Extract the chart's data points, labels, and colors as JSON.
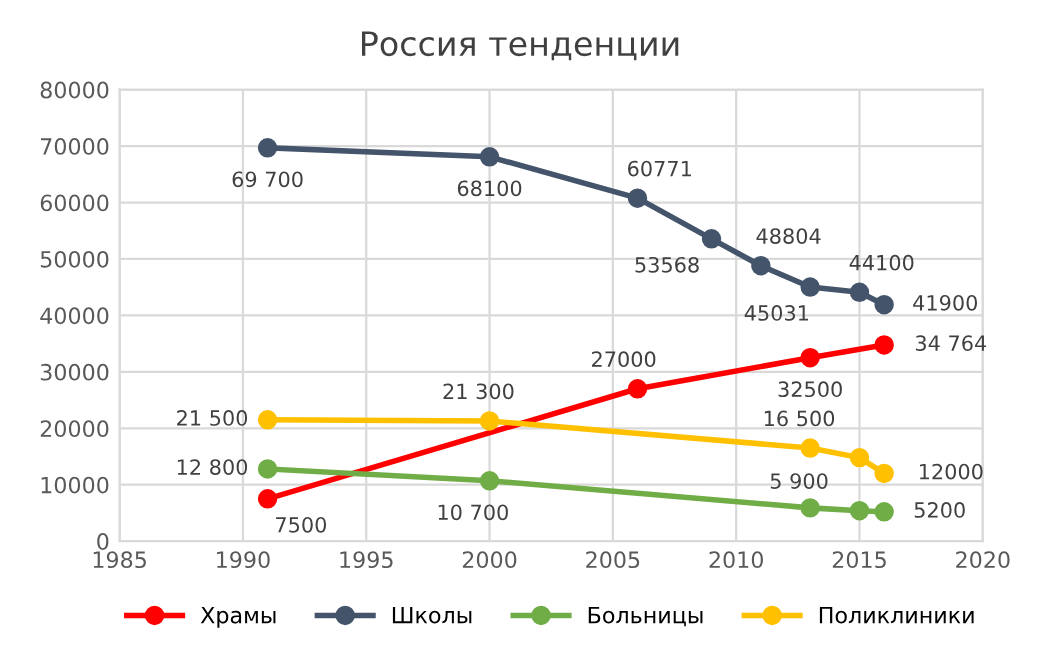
{
  "chart_data": {
    "type": "line",
    "title": "Россия тенденции",
    "xlim": [
      1985,
      2020
    ],
    "xticks": [
      1985,
      1990,
      1995,
      2000,
      2005,
      2010,
      2015,
      2020
    ],
    "ylim": [
      0,
      80000
    ],
    "yticks": [
      0,
      10000,
      20000,
      30000,
      40000,
      50000,
      60000,
      70000,
      80000
    ],
    "grid": true,
    "legend": "bottom",
    "marker": "circle",
    "line_style": "solid",
    "series": [
      {
        "name": "Храмы",
        "color": "#ff0000",
        "x": [
          1991,
          2006,
          2013,
          2016
        ],
        "values": [
          7500,
          27000,
          32500,
          34764
        ],
        "value_labels": [
          "7500",
          "27000",
          "32500",
          "34 764"
        ]
      },
      {
        "name": "Школы",
        "color": "#44546a",
        "x": [
          1991,
          2000,
          2006,
          2009,
          2011,
          2013,
          2015,
          2016
        ],
        "values": [
          69700,
          68100,
          60771,
          53568,
          48804,
          45031,
          44100,
          41900
        ],
        "value_labels": [
          "69 700",
          "68100",
          "60771",
          "53568",
          "48804",
          "45031",
          "44100",
          "41900"
        ]
      },
      {
        "name": "Больницы",
        "color": "#70ad47",
        "x": [
          1991,
          2000,
          2013,
          2015,
          2016
        ],
        "values": [
          12800,
          10700,
          5900,
          5400,
          5200
        ],
        "value_labels": [
          "12 800",
          "10 700",
          "5 900",
          null,
          "5200"
        ]
      },
      {
        "name": "Поликлиники",
        "color": "#ffc000",
        "x": [
          1991,
          2000,
          2013,
          2015,
          2016
        ],
        "values": [
          21500,
          21300,
          16500,
          14800,
          12000
        ],
        "value_labels": [
          "21 500",
          "21 300",
          "16 500",
          null,
          "12000"
        ]
      }
    ]
  }
}
